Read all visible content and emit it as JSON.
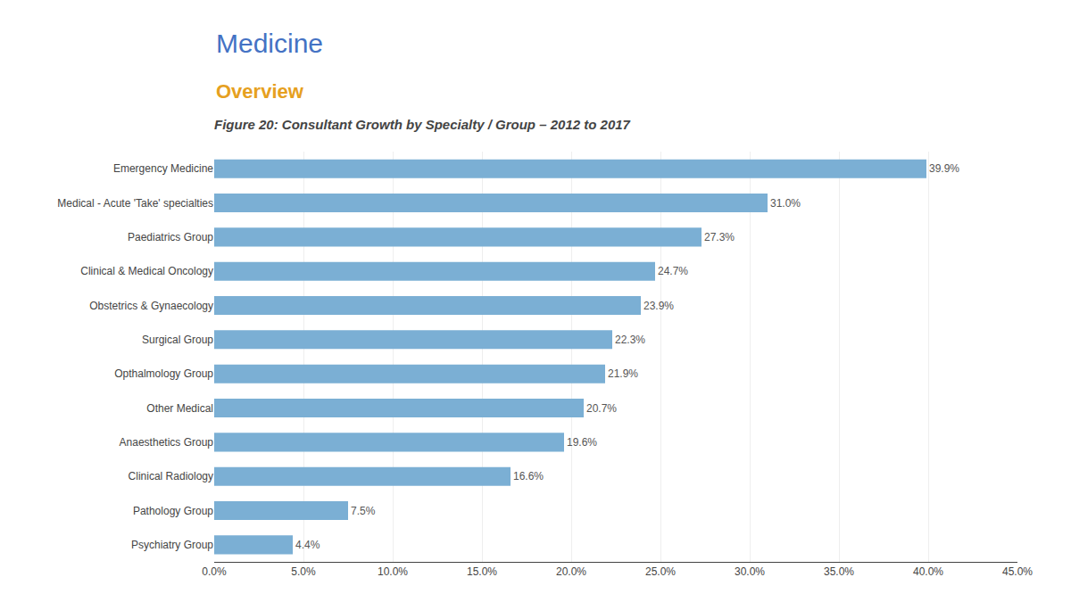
{
  "chart_data": {
    "type": "bar",
    "orientation": "horizontal",
    "title": "Figure 20: Consultant Growth by Specialty / Group – 2012 to 2017",
    "annotations": [
      {
        "text": "Medicine",
        "color": "#4472c4"
      },
      {
        "text": "Overview",
        "color": "#e6a020"
      }
    ],
    "categories": [
      "Emergency Medicine",
      "Medical - Acute 'Take' specialties",
      "Paediatrics Group",
      "Clinical & Medical Oncology",
      "Obstetrics & Gynaecology",
      "Surgical Group",
      "Opthalmology Group",
      "Other Medical",
      "Anaesthetics Group",
      "Clinical Radiology",
      "Pathology Group",
      "Psychiatry Group"
    ],
    "values": [
      39.9,
      31.0,
      27.3,
      24.7,
      23.9,
      22.3,
      21.9,
      20.7,
      19.6,
      16.6,
      7.5,
      4.4
    ],
    "value_labels": [
      "39.9%",
      "31.0%",
      "27.3%",
      "24.7%",
      "23.9%",
      "22.3%",
      "21.9%",
      "20.7%",
      "19.6%",
      "16.6%",
      "7.5%",
      "4.4%"
    ],
    "data_labels": true,
    "color": "#7bafd4",
    "xlim": [
      0,
      45
    ],
    "xticks": [
      {
        "value": 0,
        "label": "0.0%"
      },
      {
        "value": 5,
        "label": "5.0%"
      },
      {
        "value": 10,
        "label": "10.0%"
      },
      {
        "value": 15,
        "label": "15.0%"
      },
      {
        "value": 20,
        "label": "20.0%"
      },
      {
        "value": 25,
        "label": "25.0%"
      },
      {
        "value": 30,
        "label": "30.0%"
      },
      {
        "value": 35,
        "label": "35.0%"
      },
      {
        "value": 40,
        "label": "40.0%"
      },
      {
        "value": 45,
        "label": "45.0%"
      }
    ],
    "grid": true
  }
}
